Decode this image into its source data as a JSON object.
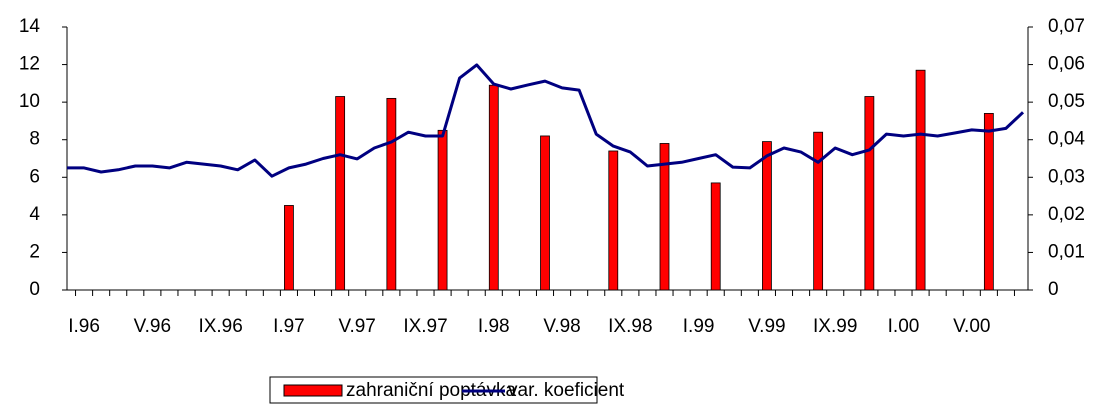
{
  "chart_data": {
    "type": "bar",
    "categories": [
      null,
      "I.96",
      null,
      null,
      null,
      "V.96",
      null,
      null,
      null,
      "IX.96",
      null,
      null,
      null,
      "I.97",
      null,
      null,
      null,
      "V.97",
      null,
      null,
      null,
      "IX.97",
      null,
      null,
      null,
      "I.98",
      null,
      null,
      null,
      "V.98",
      null,
      null,
      null,
      "IX.98",
      null,
      null,
      null,
      "I.99",
      null,
      null,
      null,
      "V.99",
      null,
      null,
      null,
      "IX.99",
      null,
      null,
      null,
      "I.00",
      null,
      null,
      null,
      "V.00",
      null,
      null,
      null
    ],
    "series": [
      {
        "name": "zahraniční poptávka",
        "type": "bar",
        "color": "#ff0000",
        "values": [
          null,
          null,
          null,
          null,
          null,
          null,
          null,
          null,
          null,
          null,
          null,
          null,
          null,
          4.5,
          null,
          null,
          10.3,
          null,
          null,
          10.2,
          null,
          null,
          8.5,
          null,
          null,
          10.9,
          null,
          null,
          8.2,
          null,
          null,
          null,
          7.4,
          null,
          null,
          7.8,
          null,
          null,
          5.7,
          null,
          null,
          7.9,
          null,
          null,
          8.4,
          null,
          null,
          10.3,
          null,
          null,
          11.7,
          null,
          null,
          null,
          9.4,
          null,
          null
        ]
      },
      {
        "name": "var. koeficient",
        "type": "line",
        "axis": "y2",
        "color": "#000080",
        "values": [
          0.0325,
          0.0325,
          0.0314,
          0.032,
          0.033,
          0.033,
          0.0325,
          0.034,
          0.0335,
          0.033,
          0.032,
          0.0346,
          0.0303,
          0.0325,
          0.0335,
          0.035,
          0.036,
          0.0349,
          0.0378,
          0.0394,
          0.042,
          0.041,
          0.041,
          0.0564,
          0.0599,
          0.0548,
          0.0535,
          0.0546,
          0.0556,
          0.0538,
          0.0532,
          0.0415,
          0.0383,
          0.0367,
          0.033,
          0.0335,
          0.034,
          0.035,
          0.036,
          0.0327,
          0.0325,
          0.0357,
          0.0378,
          0.0367,
          0.034,
          0.0378,
          0.036,
          0.0373,
          0.0415,
          0.041,
          0.0415,
          0.041,
          0.0418,
          0.0426,
          0.0423,
          0.043,
          0.0473
        ]
      }
    ],
    "ylim": [
      0,
      14
    ],
    "yticks": [
      0,
      2,
      4,
      6,
      8,
      10,
      12,
      14
    ],
    "y2lim": [
      0,
      0.07
    ],
    "y2ticks": [
      0,
      {
        "value": 0.01,
        "label": "0,01"
      },
      {
        "value": 0.02,
        "label": "0,02"
      },
      {
        "value": 0.03,
        "label": "0,03"
      },
      {
        "value": 0.04,
        "label": "0,04"
      },
      {
        "value": 0.05,
        "label": "0,05"
      },
      {
        "value": 0.06,
        "label": "0,06"
      },
      {
        "value": 0.07,
        "label": "0,07"
      }
    ]
  }
}
